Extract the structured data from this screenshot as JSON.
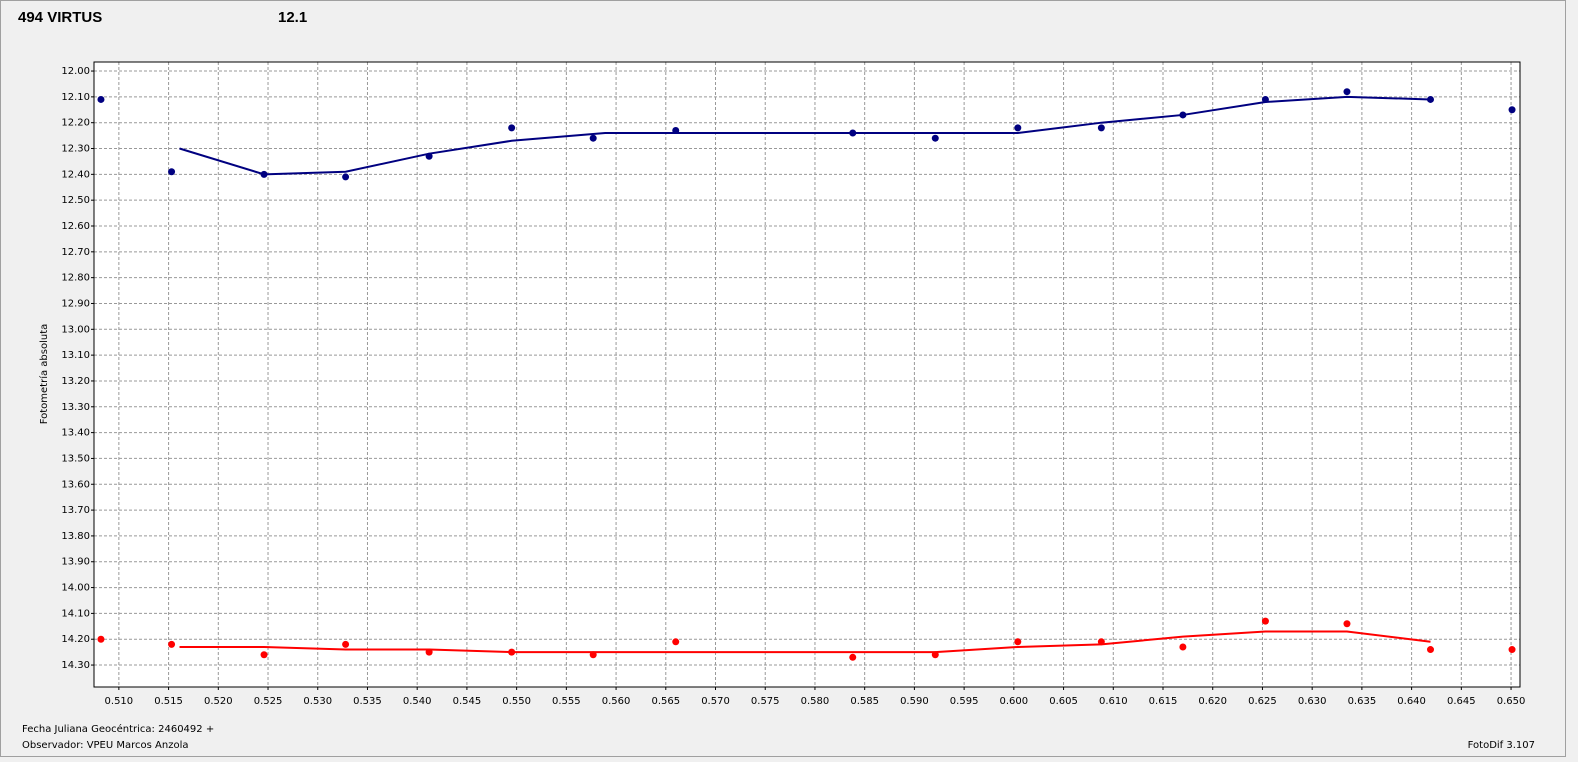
{
  "chart_data": {
    "type": "scatter",
    "title": "494 VIRTUS",
    "title_color": "#ff0000",
    "subtitle": "12.1",
    "subtitle_color": "#000080",
    "ylabel": "Fotometría absoluta",
    "xlabel": "Fecha Juliana Geocéntrica: 2460492 +",
    "annotations": [
      "Observador: VPEU Marcos Anzola",
      "FotoDif 3.107"
    ],
    "xlim": [
      0.5075,
      0.6509
    ],
    "ylim": [
      11.965,
      14.385
    ],
    "y_inverted": true,
    "grid": true,
    "xticks": [
      {
        "value": 0.51,
        "label": "0.510"
      },
      {
        "value": 0.515,
        "label": "0.515"
      },
      {
        "value": 0.52,
        "label": "0.520"
      },
      {
        "value": 0.525,
        "label": "0.525"
      },
      {
        "value": 0.53,
        "label": "0.530"
      },
      {
        "value": 0.535,
        "label": "0.535"
      },
      {
        "value": 0.54,
        "label": "0.540"
      },
      {
        "value": 0.545,
        "label": "0.545"
      },
      {
        "value": 0.55,
        "label": "0.550"
      },
      {
        "value": 0.555,
        "label": "0.555"
      },
      {
        "value": 0.56,
        "label": "0.560"
      },
      {
        "value": 0.565,
        "label": "0.565"
      },
      {
        "value": 0.57,
        "label": "0.570"
      },
      {
        "value": 0.575,
        "label": "0.575"
      },
      {
        "value": 0.58,
        "label": "0.580"
      },
      {
        "value": 0.585,
        "label": "0.585"
      },
      {
        "value": 0.59,
        "label": "0.590"
      },
      {
        "value": 0.595,
        "label": "0.595"
      },
      {
        "value": 0.6,
        "label": "0.600"
      },
      {
        "value": 0.605,
        "label": "0.605"
      },
      {
        "value": 0.61,
        "label": "0.610"
      },
      {
        "value": 0.615,
        "label": "0.615"
      },
      {
        "value": 0.62,
        "label": "0.620"
      },
      {
        "value": 0.625,
        "label": "0.625"
      },
      {
        "value": 0.63,
        "label": "0.630"
      },
      {
        "value": 0.635,
        "label": "0.635"
      },
      {
        "value": 0.64,
        "label": "0.640"
      },
      {
        "value": 0.645,
        "label": "0.645"
      },
      {
        "value": 0.65,
        "label": "0.650"
      }
    ],
    "yticks": [
      {
        "value": 12,
        "label": "12.00"
      },
      {
        "value": 12.1,
        "label": "12.10"
      },
      {
        "value": 12.2,
        "label": "12.20"
      },
      {
        "value": 12.3,
        "label": "12.30"
      },
      {
        "value": 12.4,
        "label": "12.40"
      },
      {
        "value": 12.5,
        "label": "12.50"
      },
      {
        "value": 12.6,
        "label": "12.60"
      },
      {
        "value": 12.7,
        "label": "12.70"
      },
      {
        "value": 12.8,
        "label": "12.80"
      },
      {
        "value": 12.9,
        "label": "12.90"
      },
      {
        "value": 13,
        "label": "13.00"
      },
      {
        "value": 13.1,
        "label": "13.10"
      },
      {
        "value": 13.2,
        "label": "13.20"
      },
      {
        "value": 13.3,
        "label": "13.30"
      },
      {
        "value": 13.4,
        "label": "13.40"
      },
      {
        "value": 13.5,
        "label": "13.50"
      },
      {
        "value": 13.6,
        "label": "13.60"
      },
      {
        "value": 13.7,
        "label": "13.70"
      },
      {
        "value": 13.8,
        "label": "13.80"
      },
      {
        "value": 13.9,
        "label": "13.90"
      },
      {
        "value": 14,
        "label": "14.00"
      },
      {
        "value": 14.1,
        "label": "14.10"
      },
      {
        "value": 14.2,
        "label": "14.20"
      },
      {
        "value": 14.3,
        "label": "14.30"
      }
    ],
    "series": [
      {
        "color": "#000080",
        "mode": "markers",
        "x": [
          0.5082,
          0.5153,
          0.5246,
          0.5328,
          0.5412,
          0.5495,
          0.5577,
          0.566,
          0.5838,
          0.5921,
          0.6004,
          0.6088,
          0.617,
          0.6253,
          0.6335,
          0.6419,
          0.6501
        ],
        "values": [
          12.11,
          12.39,
          12.4,
          12.41,
          12.33,
          12.22,
          12.26,
          12.23,
          12.24,
          12.26,
          12.22,
          12.22,
          12.17,
          12.11,
          12.08,
          12.11,
          12.15
        ]
      },
      {
        "color": "#000080",
        "mode": "line",
        "x": [
          0.5161,
          0.5246,
          0.5328,
          0.5412,
          0.5495,
          0.5589,
          0.566,
          0.5838,
          0.5921,
          0.6004,
          0.6088,
          0.617,
          0.6253,
          0.6335,
          0.6419
        ],
        "values": [
          12.3,
          12.4,
          12.39,
          12.32,
          12.27,
          12.24,
          12.24,
          12.24,
          12.24,
          12.24,
          12.2,
          12.17,
          12.12,
          12.1,
          12.11
        ]
      },
      {
        "color": "#ff0000",
        "mode": "markers",
        "x": [
          0.5082,
          0.5153,
          0.5246,
          0.5328,
          0.5412,
          0.5495,
          0.5577,
          0.566,
          0.5838,
          0.5921,
          0.6004,
          0.6088,
          0.617,
          0.6253,
          0.6335,
          0.6419,
          0.6501
        ],
        "values": [
          14.2,
          14.22,
          14.26,
          14.22,
          14.25,
          14.25,
          14.26,
          14.21,
          14.27,
          14.26,
          14.21,
          14.21,
          14.23,
          14.13,
          14.14,
          14.24,
          14.24
        ]
      },
      {
        "color": "#ff0000",
        "mode": "line",
        "x": [
          0.5161,
          0.5246,
          0.5328,
          0.5412,
          0.5495,
          0.5577,
          0.566,
          0.5838,
          0.5921,
          0.6004,
          0.6088,
          0.617,
          0.6253,
          0.6335,
          0.6419
        ],
        "values": [
          14.23,
          14.23,
          14.24,
          14.24,
          14.25,
          14.25,
          14.25,
          14.25,
          14.25,
          14.23,
          14.22,
          14.19,
          14.17,
          14.17,
          14.21
        ]
      }
    ]
  }
}
